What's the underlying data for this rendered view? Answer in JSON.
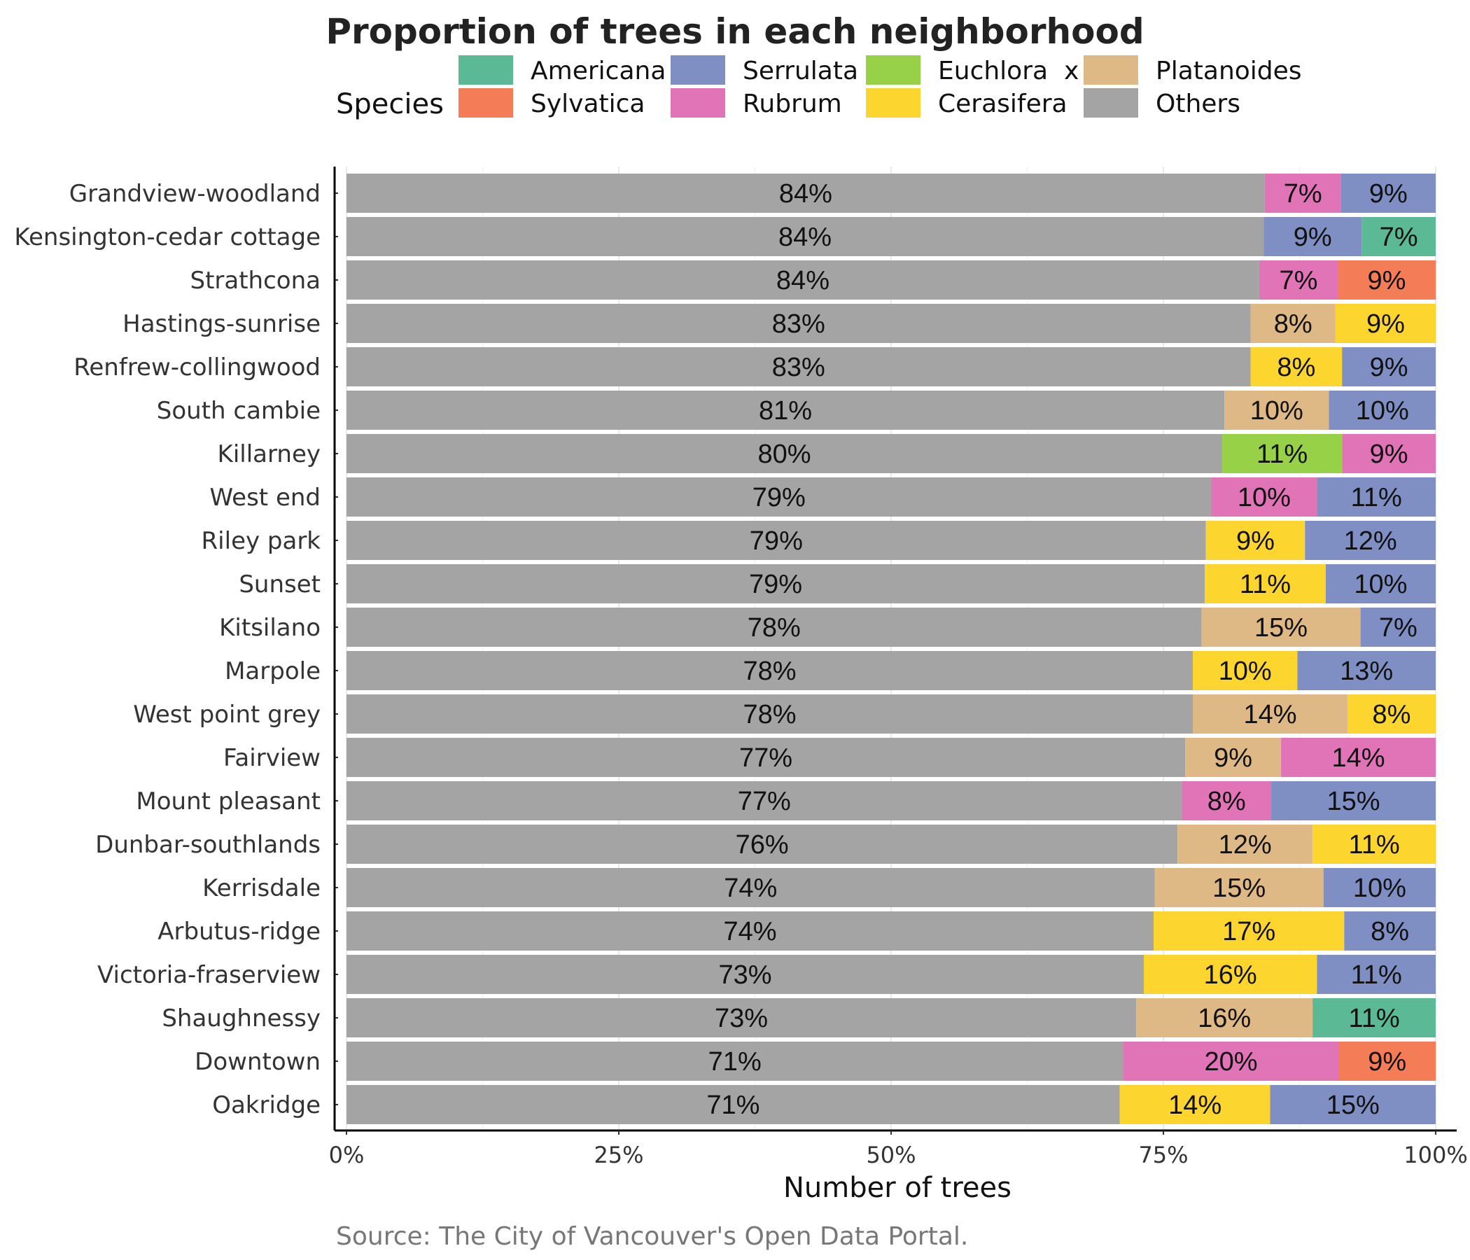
{
  "chart_data": {
    "type": "bar",
    "orientation": "horizontal",
    "stacked": true,
    "title": "Proportion of trees in each neighborhood",
    "xlabel": "Number of trees",
    "ylabel": "",
    "caption": "Source: The City of Vancouver's Open Data Portal.",
    "xlim": [
      0,
      100
    ],
    "x_ticks": [
      "0%",
      "25%",
      "50%",
      "75%",
      "100%"
    ],
    "x_tick_values": [
      0,
      25,
      50,
      75,
      100
    ],
    "grid": true,
    "legend": {
      "title": "Species",
      "placement": "top",
      "entries": [
        {
          "name": "Americana",
          "color": "#5bb995"
        },
        {
          "name": "Serrulata",
          "color": "#7f8fc3"
        },
        {
          "name": "Euchlora  x",
          "color": "#97d147"
        },
        {
          "name": "Platanoides",
          "color": "#deb985"
        },
        {
          "name": "Sylvatica",
          "color": "#f47c57"
        },
        {
          "name": "Rubrum",
          "color": "#e174b6"
        },
        {
          "name": "Cerasifera",
          "color": "#fdd52f"
        },
        {
          "name": "Others",
          "color": "#a4a4a4"
        }
      ]
    },
    "colors": {
      "Americana": "#5bb995",
      "Serrulata": "#7f8fc3",
      "Euchlora  x": "#97d147",
      "Platanoides": "#deb985",
      "Sylvatica": "#f47c57",
      "Rubrum": "#e174b6",
      "Cerasifera": "#fdd52f",
      "Others": "#a4a4a4"
    },
    "rows": [
      {
        "name": "Grandview-woodland",
        "segments": [
          {
            "species": "Others",
            "value": 84.3,
            "label": "84%"
          },
          {
            "species": "Rubrum",
            "value": 7.0,
            "label": "7%"
          },
          {
            "species": "Serrulata",
            "value": 8.7,
            "label": "9%"
          }
        ]
      },
      {
        "name": "Kensington-cedar cottage",
        "segments": [
          {
            "species": "Others",
            "value": 84.2,
            "label": "84%"
          },
          {
            "species": "Serrulata",
            "value": 9.0,
            "label": "9%"
          },
          {
            "species": "Americana",
            "value": 6.8,
            "label": "7%"
          }
        ]
      },
      {
        "name": "Strathcona",
        "segments": [
          {
            "species": "Others",
            "value": 83.8,
            "label": "84%"
          },
          {
            "species": "Rubrum",
            "value": 7.2,
            "label": "7%"
          },
          {
            "species": "Sylvatica",
            "value": 9.0,
            "label": "9%"
          }
        ]
      },
      {
        "name": "Hastings-sunrise",
        "segments": [
          {
            "species": "Others",
            "value": 83.0,
            "label": "83%"
          },
          {
            "species": "Platanoides",
            "value": 7.8,
            "label": "8%"
          },
          {
            "species": "Cerasifera",
            "value": 9.2,
            "label": "9%"
          }
        ]
      },
      {
        "name": "Renfrew-collingwood",
        "segments": [
          {
            "species": "Others",
            "value": 83.0,
            "label": "83%"
          },
          {
            "species": "Cerasifera",
            "value": 8.4,
            "label": "8%"
          },
          {
            "species": "Serrulata",
            "value": 8.6,
            "label": "9%"
          }
        ]
      },
      {
        "name": "South cambie",
        "segments": [
          {
            "species": "Others",
            "value": 80.6,
            "label": "81%"
          },
          {
            "species": "Platanoides",
            "value": 9.6,
            "label": "10%"
          },
          {
            "species": "Serrulata",
            "value": 9.8,
            "label": "10%"
          }
        ]
      },
      {
        "name": "Killarney",
        "segments": [
          {
            "species": "Others",
            "value": 80.4,
            "label": "80%"
          },
          {
            "species": "Euchlora  x",
            "value": 11.0,
            "label": "11%"
          },
          {
            "species": "Rubrum",
            "value": 8.6,
            "label": "9%"
          }
        ]
      },
      {
        "name": "West end",
        "segments": [
          {
            "species": "Others",
            "value": 79.4,
            "label": "79%"
          },
          {
            "species": "Rubrum",
            "value": 9.7,
            "label": "10%"
          },
          {
            "species": "Serrulata",
            "value": 10.9,
            "label": "11%"
          }
        ]
      },
      {
        "name": "Riley park",
        "segments": [
          {
            "species": "Others",
            "value": 78.9,
            "label": "79%"
          },
          {
            "species": "Cerasifera",
            "value": 9.1,
            "label": "9%"
          },
          {
            "species": "Serrulata",
            "value": 12.0,
            "label": "12%"
          }
        ]
      },
      {
        "name": "Sunset",
        "segments": [
          {
            "species": "Others",
            "value": 78.8,
            "label": "79%"
          },
          {
            "species": "Cerasifera",
            "value": 11.1,
            "label": "11%"
          },
          {
            "species": "Serrulata",
            "value": 10.1,
            "label": "10%"
          }
        ]
      },
      {
        "name": "Kitsilano",
        "segments": [
          {
            "species": "Others",
            "value": 78.5,
            "label": "78%"
          },
          {
            "species": "Platanoides",
            "value": 14.6,
            "label": "15%"
          },
          {
            "species": "Serrulata",
            "value": 6.9,
            "label": "7%"
          }
        ]
      },
      {
        "name": "Marpole",
        "segments": [
          {
            "species": "Others",
            "value": 77.7,
            "label": "78%"
          },
          {
            "species": "Cerasifera",
            "value": 9.6,
            "label": "10%"
          },
          {
            "species": "Serrulata",
            "value": 12.7,
            "label": "13%"
          }
        ]
      },
      {
        "name": "West point grey",
        "segments": [
          {
            "species": "Others",
            "value": 77.7,
            "label": "78%"
          },
          {
            "species": "Platanoides",
            "value": 14.2,
            "label": "14%"
          },
          {
            "species": "Cerasifera",
            "value": 8.1,
            "label": "8%"
          }
        ]
      },
      {
        "name": "Fairview",
        "segments": [
          {
            "species": "Others",
            "value": 77.0,
            "label": "77%"
          },
          {
            "species": "Platanoides",
            "value": 8.8,
            "label": "9%"
          },
          {
            "species": "Rubrum",
            "value": 14.2,
            "label": "14%"
          }
        ]
      },
      {
        "name": "Mount pleasant",
        "segments": [
          {
            "species": "Others",
            "value": 76.7,
            "label": "77%"
          },
          {
            "species": "Rubrum",
            "value": 8.2,
            "label": "8%"
          },
          {
            "species": "Serrulata",
            "value": 15.1,
            "label": "15%"
          }
        ]
      },
      {
        "name": "Dunbar-southlands",
        "segments": [
          {
            "species": "Others",
            "value": 76.3,
            "label": "76%"
          },
          {
            "species": "Platanoides",
            "value": 12.4,
            "label": "12%"
          },
          {
            "species": "Cerasifera",
            "value": 11.3,
            "label": "11%"
          }
        ]
      },
      {
        "name": "Kerrisdale",
        "segments": [
          {
            "species": "Others",
            "value": 74.2,
            "label": "74%"
          },
          {
            "species": "Platanoides",
            "value": 15.5,
            "label": "15%"
          },
          {
            "species": "Serrulata",
            "value": 10.3,
            "label": "10%"
          }
        ]
      },
      {
        "name": "Arbutus-ridge",
        "segments": [
          {
            "species": "Others",
            "value": 74.1,
            "label": "74%"
          },
          {
            "species": "Cerasifera",
            "value": 17.5,
            "label": "17%"
          },
          {
            "species": "Serrulata",
            "value": 8.4,
            "label": "8%"
          }
        ]
      },
      {
        "name": "Victoria-fraserview",
        "segments": [
          {
            "species": "Others",
            "value": 73.2,
            "label": "73%"
          },
          {
            "species": "Cerasifera",
            "value": 15.9,
            "label": "16%"
          },
          {
            "species": "Serrulata",
            "value": 10.9,
            "label": "11%"
          }
        ]
      },
      {
        "name": "Shaughnessy",
        "segments": [
          {
            "species": "Others",
            "value": 72.5,
            "label": "73%"
          },
          {
            "species": "Platanoides",
            "value": 16.2,
            "label": "16%"
          },
          {
            "species": "Americana",
            "value": 11.3,
            "label": "11%"
          }
        ]
      },
      {
        "name": "Downtown",
        "segments": [
          {
            "species": "Others",
            "value": 71.3,
            "label": "71%"
          },
          {
            "species": "Rubrum",
            "value": 19.8,
            "label": "20%"
          },
          {
            "species": "Sylvatica",
            "value": 8.9,
            "label": "9%"
          }
        ]
      },
      {
        "name": "Oakridge",
        "segments": [
          {
            "species": "Others",
            "value": 71.0,
            "label": "71%"
          },
          {
            "species": "Cerasifera",
            "value": 13.8,
            "label": "14%"
          },
          {
            "species": "Serrulata",
            "value": 15.2,
            "label": "15%"
          }
        ]
      }
    ]
  }
}
